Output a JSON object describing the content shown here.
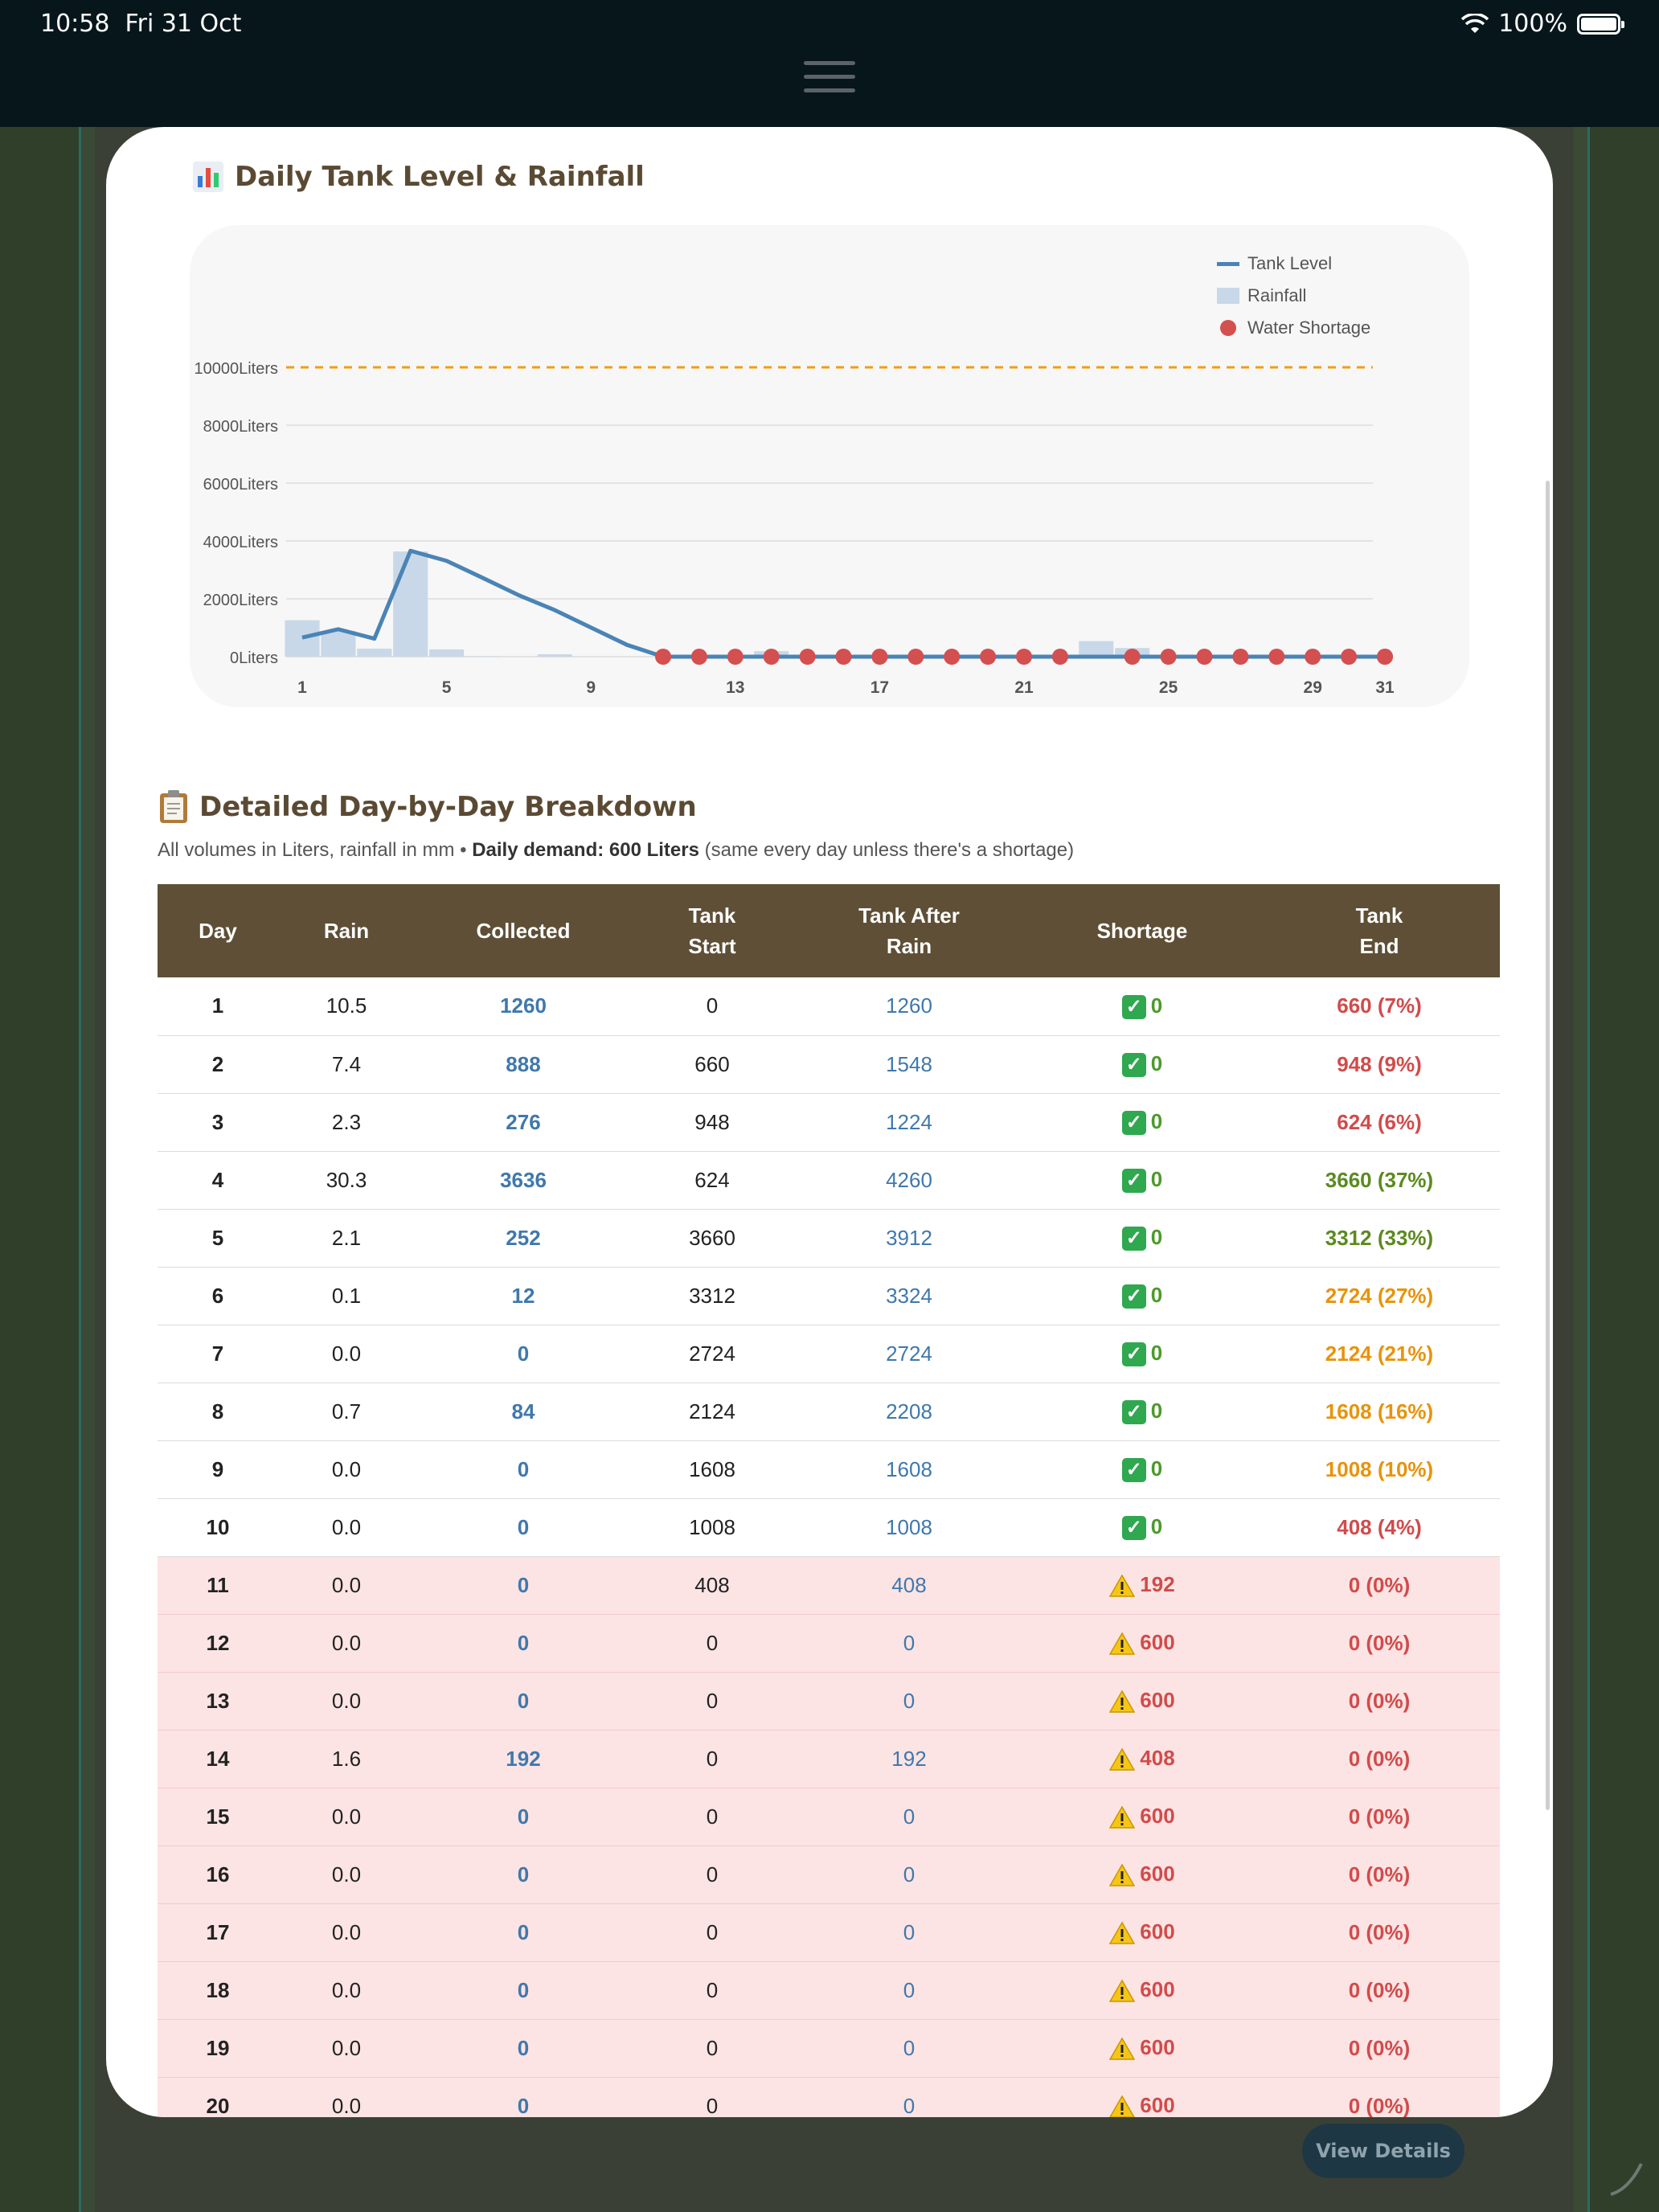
{
  "status_bar": {
    "time": "10:58",
    "date": "Fri 31 Oct",
    "battery": "100%"
  },
  "background": {
    "view_details_label": "View Details"
  },
  "chart_section": {
    "title": "Daily Tank Level & Rainfall",
    "icon": "bar-chart-icon"
  },
  "chart_data": {
    "type": "line",
    "title": "Daily Tank Level & Rainfall",
    "xlabel": "",
    "ylabel": "",
    "x_ticks": [
      "1",
      "5",
      "9",
      "13",
      "17",
      "21",
      "25",
      "29",
      "31"
    ],
    "y_ticks": [
      "0Liters",
      "2000Liters",
      "4000Liters",
      "6000Liters",
      "8000Liters",
      "10000Liters"
    ],
    "ylim": [
      0,
      10000
    ],
    "xlim": [
      1,
      31
    ],
    "grid": true,
    "legend_position": "top-right",
    "legend": [
      "Tank Level",
      "Rainfall",
      "Water Shortage"
    ],
    "threshold": {
      "value": 10000,
      "color": "#f39c12",
      "style": "dashed"
    },
    "x": [
      1,
      2,
      3,
      4,
      5,
      6,
      7,
      8,
      9,
      10,
      11,
      12,
      13,
      14,
      15,
      16,
      17,
      18,
      19,
      20,
      21,
      22,
      23,
      24,
      25,
      26,
      27,
      28,
      29,
      30,
      31
    ],
    "series": [
      {
        "name": "Tank Level",
        "type": "line",
        "color": "#4a84b6",
        "values": [
          660,
          948,
          624,
          3660,
          3312,
          2724,
          2124,
          1608,
          1008,
          408,
          0,
          0,
          0,
          0,
          0,
          0,
          0,
          0,
          0,
          0,
          0,
          0,
          0,
          0,
          0,
          0,
          0,
          0,
          0,
          0,
          0
        ]
      },
      {
        "name": "Rainfall",
        "type": "bar",
        "color": "#c8d8e8",
        "values": [
          1260,
          888,
          276,
          3636,
          252,
          12,
          0,
          84,
          0,
          0,
          0,
          0,
          0,
          192,
          0,
          0,
          0,
          0,
          0,
          0,
          0,
          60,
          540,
          300,
          0,
          0,
          0,
          0,
          0,
          0,
          0
        ]
      },
      {
        "name": "Water Shortage",
        "type": "scatter",
        "color": "#d44f4f",
        "x": [
          11,
          12,
          13,
          14,
          15,
          16,
          17,
          18,
          19,
          20,
          21,
          22,
          24,
          25,
          26,
          27,
          28,
          29,
          30,
          31,
          32
        ],
        "values": [
          0,
          0,
          0,
          0,
          0,
          0,
          0,
          0,
          0,
          0,
          0,
          0,
          0,
          0,
          0,
          0,
          0,
          0,
          0,
          0,
          0
        ]
      }
    ]
  },
  "breakdown": {
    "title": "Detailed Day-by-Day Breakdown",
    "icon": "clipboard-icon",
    "note_prefix": "All volumes in Liters, rainfall in mm • ",
    "note_bold": "Daily demand: 600 Liters",
    "note_suffix": " (same every day unless there's a shortage)",
    "headers": [
      {
        "l1": "Day",
        "l2": ""
      },
      {
        "l1": "Rain",
        "l2": ""
      },
      {
        "l1": "Collected",
        "l2": ""
      },
      {
        "l1": "Tank",
        "l2": "Start"
      },
      {
        "l1": "Tank After",
        "l2": "Rain"
      },
      {
        "l1": "Shortage",
        "l2": ""
      },
      {
        "l1": "Tank",
        "l2": "End"
      }
    ],
    "rows": [
      {
        "day": "1",
        "rain": "10.5",
        "collected": "1260",
        "start": "0",
        "after": "1260",
        "shortage": "0",
        "short": false,
        "end": "660 (7%)",
        "end_level": "red"
      },
      {
        "day": "2",
        "rain": "7.4",
        "collected": "888",
        "start": "660",
        "after": "1548",
        "shortage": "0",
        "short": false,
        "end": "948 (9%)",
        "end_level": "red"
      },
      {
        "day": "3",
        "rain": "2.3",
        "collected": "276",
        "start": "948",
        "after": "1224",
        "shortage": "0",
        "short": false,
        "end": "624 (6%)",
        "end_level": "red"
      },
      {
        "day": "4",
        "rain": "30.3",
        "collected": "3636",
        "start": "624",
        "after": "4260",
        "shortage": "0",
        "short": false,
        "end": "3660 (37%)",
        "end_level": "green"
      },
      {
        "day": "5",
        "rain": "2.1",
        "collected": "252",
        "start": "3660",
        "after": "3912",
        "shortage": "0",
        "short": false,
        "end": "3312 (33%)",
        "end_level": "green"
      },
      {
        "day": "6",
        "rain": "0.1",
        "collected": "12",
        "start": "3312",
        "after": "3324",
        "shortage": "0",
        "short": false,
        "end": "2724 (27%)",
        "end_level": "orange"
      },
      {
        "day": "7",
        "rain": "0.0",
        "collected": "0",
        "start": "2724",
        "after": "2724",
        "shortage": "0",
        "short": false,
        "end": "2124 (21%)",
        "end_level": "orange"
      },
      {
        "day": "8",
        "rain": "0.7",
        "collected": "84",
        "start": "2124",
        "after": "2208",
        "shortage": "0",
        "short": false,
        "end": "1608 (16%)",
        "end_level": "orange"
      },
      {
        "day": "9",
        "rain": "0.0",
        "collected": "0",
        "start": "1608",
        "after": "1608",
        "shortage": "0",
        "short": false,
        "end": "1008 (10%)",
        "end_level": "orange"
      },
      {
        "day": "10",
        "rain": "0.0",
        "collected": "0",
        "start": "1008",
        "after": "1008",
        "shortage": "0",
        "short": false,
        "end": "408 (4%)",
        "end_level": "red"
      },
      {
        "day": "11",
        "rain": "0.0",
        "collected": "0",
        "start": "408",
        "after": "408",
        "shortage": "192",
        "short": true,
        "end": "0 (0%)",
        "end_level": "red"
      },
      {
        "day": "12",
        "rain": "0.0",
        "collected": "0",
        "start": "0",
        "after": "0",
        "shortage": "600",
        "short": true,
        "end": "0 (0%)",
        "end_level": "red"
      },
      {
        "day": "13",
        "rain": "0.0",
        "collected": "0",
        "start": "0",
        "after": "0",
        "shortage": "600",
        "short": true,
        "end": "0 (0%)",
        "end_level": "red"
      },
      {
        "day": "14",
        "rain": "1.6",
        "collected": "192",
        "start": "0",
        "after": "192",
        "shortage": "408",
        "short": true,
        "end": "0 (0%)",
        "end_level": "red"
      },
      {
        "day": "15",
        "rain": "0.0",
        "collected": "0",
        "start": "0",
        "after": "0",
        "shortage": "600",
        "short": true,
        "end": "0 (0%)",
        "end_level": "red"
      },
      {
        "day": "16",
        "rain": "0.0",
        "collected": "0",
        "start": "0",
        "after": "0",
        "shortage": "600",
        "short": true,
        "end": "0 (0%)",
        "end_level": "red"
      },
      {
        "day": "17",
        "rain": "0.0",
        "collected": "0",
        "start": "0",
        "after": "0",
        "shortage": "600",
        "short": true,
        "end": "0 (0%)",
        "end_level": "red"
      },
      {
        "day": "18",
        "rain": "0.0",
        "collected": "0",
        "start": "0",
        "after": "0",
        "shortage": "600",
        "short": true,
        "end": "0 (0%)",
        "end_level": "red"
      },
      {
        "day": "19",
        "rain": "0.0",
        "collected": "0",
        "start": "0",
        "after": "0",
        "shortage": "600",
        "short": true,
        "end": "0 (0%)",
        "end_level": "red"
      },
      {
        "day": "20",
        "rain": "0.0",
        "collected": "0",
        "start": "0",
        "after": "0",
        "shortage": "600",
        "short": true,
        "end": "0 (0%)",
        "end_level": "red"
      }
    ]
  }
}
